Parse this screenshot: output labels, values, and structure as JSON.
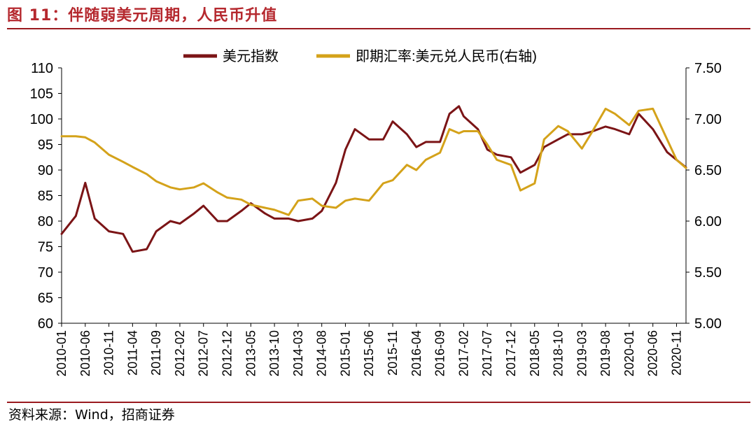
{
  "title": "图 11：伴随弱美元周期，人民币升值",
  "source": "资料来源：Wind，招商证券",
  "chart_data": {
    "type": "line",
    "x": [
      "2010-01",
      "2010-04",
      "2010-06",
      "2010-08",
      "2010-11",
      "2011-02",
      "2011-04",
      "2011-07",
      "2011-09",
      "2011-12",
      "2012-02",
      "2012-05",
      "2012-07",
      "2012-10",
      "2012-12",
      "2013-03",
      "2013-05",
      "2013-08",
      "2013-10",
      "2014-01",
      "2014-03",
      "2014-06",
      "2014-08",
      "2014-11",
      "2015-01",
      "2015-03",
      "2015-06",
      "2015-09",
      "2015-11",
      "2016-02",
      "2016-04",
      "2016-06",
      "2016-09",
      "2016-11",
      "2017-01",
      "2017-02",
      "2017-05",
      "2017-07",
      "2017-09",
      "2017-12",
      "2018-02",
      "2018-05",
      "2018-07",
      "2018-10",
      "2018-12",
      "2019-03",
      "2019-05",
      "2019-08",
      "2019-10",
      "2020-01",
      "2020-03",
      "2020-06",
      "2020-09",
      "2020-11",
      "2021-01"
    ],
    "series": [
      {
        "name": "美元指数",
        "axis": "left",
        "color": "#7b1416",
        "values": [
          77.5,
          81,
          87.5,
          80.5,
          78,
          77.5,
          74,
          74.5,
          78,
          80,
          79.5,
          81.5,
          83,
          80,
          80,
          82,
          83.5,
          81.5,
          80.5,
          80.5,
          80,
          80.5,
          82,
          87.5,
          94,
          98,
          96,
          96,
          99.5,
          97,
          94.5,
          95.5,
          95.5,
          101,
          102.5,
          100.5,
          98,
          94,
          93,
          92.5,
          89.5,
          91,
          94.5,
          96,
          97,
          97,
          97.5,
          98.5,
          98,
          97,
          101,
          98,
          93.5,
          92,
          90.5
        ]
      },
      {
        "name": "即期汇率:美元兑人民币(右轴)",
        "axis": "right",
        "color": "#d4a21a",
        "values": [
          6.83,
          6.83,
          6.82,
          6.77,
          6.65,
          6.58,
          6.53,
          6.46,
          6.39,
          6.33,
          6.31,
          6.33,
          6.37,
          6.28,
          6.23,
          6.21,
          6.16,
          6.13,
          6.11,
          6.06,
          6.2,
          6.22,
          6.15,
          6.13,
          6.2,
          6.22,
          6.2,
          6.37,
          6.4,
          6.55,
          6.5,
          6.6,
          6.67,
          6.9,
          6.86,
          6.88,
          6.88,
          6.75,
          6.6,
          6.55,
          6.3,
          6.37,
          6.8,
          6.93,
          6.88,
          6.71,
          6.86,
          7.1,
          7.05,
          6.94,
          7.08,
          7.1,
          6.8,
          6.6,
          6.52
        ]
      }
    ],
    "xticks": [
      "2010-01",
      "2010-06",
      "2010-11",
      "2011-04",
      "2011-09",
      "2012-02",
      "2012-07",
      "2012-12",
      "2013-05",
      "2013-10",
      "2014-03",
      "2014-08",
      "2015-01",
      "2015-06",
      "2015-11",
      "2016-04",
      "2016-09",
      "2017-02",
      "2017-07",
      "2017-12",
      "2018-05",
      "2018-10",
      "2019-03",
      "2019-08",
      "2020-01",
      "2020-06",
      "2020-11"
    ],
    "yleft": {
      "min": 60,
      "max": 110,
      "ticks": [
        "110",
        "105",
        "100",
        "95",
        "90",
        "85",
        "80",
        "75",
        "70",
        "65",
        "60"
      ]
    },
    "yright": {
      "min": 5.0,
      "max": 7.5,
      "ticks": [
        "7.50",
        "7.00",
        "6.50",
        "6.00",
        "5.50",
        "5.00"
      ]
    },
    "legend": [
      "美元指数",
      "即期汇率:美元兑人民币(右轴)"
    ],
    "legend_position": "top"
  }
}
